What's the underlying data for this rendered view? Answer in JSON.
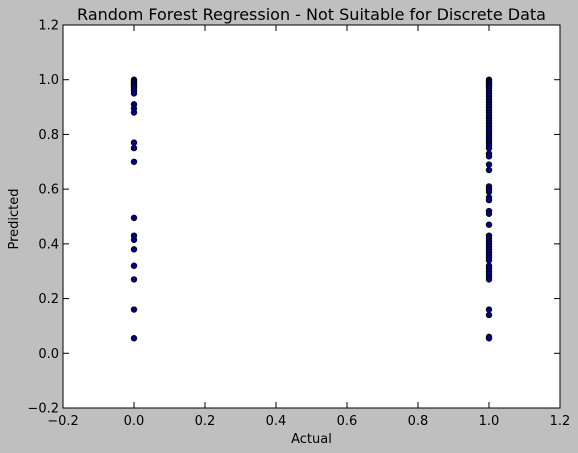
{
  "chart_data": {
    "type": "scatter",
    "title": "Random Forest Regression - Not Suitable for Discrete Data",
    "xlabel": "Actual",
    "ylabel": "Predicted",
    "xlim": [
      -0.2,
      1.2
    ],
    "ylim": [
      -0.2,
      1.2
    ],
    "xticks": [
      -0.2,
      0.0,
      0.2,
      0.4,
      0.6,
      0.8,
      1.0,
      1.2
    ],
    "yticks": [
      -0.2,
      0.0,
      0.2,
      0.4,
      0.6,
      0.8,
      1.0,
      1.2
    ],
    "xtick_labels": [
      "−0.2",
      "0.0",
      "0.2",
      "0.4",
      "0.6",
      "0.8",
      "1.0",
      "1.2"
    ],
    "ytick_labels": [
      "−0.2",
      "0.0",
      "0.2",
      "0.4",
      "0.6",
      "0.8",
      "1.0",
      "1.2"
    ],
    "grid": false,
    "marker_color": "#00008b",
    "marker_edge": "#000000",
    "series": [
      {
        "points": [
          {
            "x": 0,
            "y": 1.0
          },
          {
            "x": 0,
            "y": 0.995
          },
          {
            "x": 0,
            "y": 0.99
          },
          {
            "x": 0,
            "y": 0.985
          },
          {
            "x": 0,
            "y": 0.98
          },
          {
            "x": 0,
            "y": 0.975
          },
          {
            "x": 0,
            "y": 0.97
          },
          {
            "x": 0,
            "y": 0.96
          },
          {
            "x": 0,
            "y": 0.95
          },
          {
            "x": 0,
            "y": 0.91
          },
          {
            "x": 0,
            "y": 0.895
          },
          {
            "x": 0,
            "y": 0.88
          },
          {
            "x": 0,
            "y": 0.77
          },
          {
            "x": 0,
            "y": 0.75
          },
          {
            "x": 0,
            "y": 0.7
          },
          {
            "x": 0,
            "y": 0.495
          },
          {
            "x": 0,
            "y": 0.43
          },
          {
            "x": 0,
            "y": 0.415
          },
          {
            "x": 0,
            "y": 0.38
          },
          {
            "x": 0,
            "y": 0.32
          },
          {
            "x": 0,
            "y": 0.27
          },
          {
            "x": 0,
            "y": 0.16
          },
          {
            "x": 0,
            "y": 0.055
          },
          {
            "x": 1,
            "y": 1.0
          },
          {
            "x": 1,
            "y": 0.995
          },
          {
            "x": 1,
            "y": 0.99
          },
          {
            "x": 1,
            "y": 0.985
          },
          {
            "x": 1,
            "y": 0.98
          },
          {
            "x": 1,
            "y": 0.975
          },
          {
            "x": 1,
            "y": 0.97
          },
          {
            "x": 1,
            "y": 0.96
          },
          {
            "x": 1,
            "y": 0.95
          },
          {
            "x": 1,
            "y": 0.94
          },
          {
            "x": 1,
            "y": 0.93
          },
          {
            "x": 1,
            "y": 0.92
          },
          {
            "x": 1,
            "y": 0.91
          },
          {
            "x": 1,
            "y": 0.9
          },
          {
            "x": 1,
            "y": 0.89
          },
          {
            "x": 1,
            "y": 0.88
          },
          {
            "x": 1,
            "y": 0.87
          },
          {
            "x": 1,
            "y": 0.86
          },
          {
            "x": 1,
            "y": 0.85
          },
          {
            "x": 1,
            "y": 0.84
          },
          {
            "x": 1,
            "y": 0.83
          },
          {
            "x": 1,
            "y": 0.82
          },
          {
            "x": 1,
            "y": 0.81
          },
          {
            "x": 1,
            "y": 0.8
          },
          {
            "x": 1,
            "y": 0.79
          },
          {
            "x": 1,
            "y": 0.78
          },
          {
            "x": 1,
            "y": 0.77
          },
          {
            "x": 1,
            "y": 0.76
          },
          {
            "x": 1,
            "y": 0.75
          },
          {
            "x": 1,
            "y": 0.73
          },
          {
            "x": 1,
            "y": 0.72
          },
          {
            "x": 1,
            "y": 0.69
          },
          {
            "x": 1,
            "y": 0.67
          },
          {
            "x": 1,
            "y": 0.61
          },
          {
            "x": 1,
            "y": 0.6
          },
          {
            "x": 1,
            "y": 0.59
          },
          {
            "x": 1,
            "y": 0.57
          },
          {
            "x": 1,
            "y": 0.56
          },
          {
            "x": 1,
            "y": 0.52
          },
          {
            "x": 1,
            "y": 0.51
          },
          {
            "x": 1,
            "y": 0.47
          },
          {
            "x": 1,
            "y": 0.43
          },
          {
            "x": 1,
            "y": 0.42
          },
          {
            "x": 1,
            "y": 0.41
          },
          {
            "x": 1,
            "y": 0.4
          },
          {
            "x": 1,
            "y": 0.39
          },
          {
            "x": 1,
            "y": 0.38
          },
          {
            "x": 1,
            "y": 0.37
          },
          {
            "x": 1,
            "y": 0.36
          },
          {
            "x": 1,
            "y": 0.35
          },
          {
            "x": 1,
            "y": 0.34
          },
          {
            "x": 1,
            "y": 0.32
          },
          {
            "x": 1,
            "y": 0.31
          },
          {
            "x": 1,
            "y": 0.3
          },
          {
            "x": 1,
            "y": 0.29
          },
          {
            "x": 1,
            "y": 0.28
          },
          {
            "x": 1,
            "y": 0.27
          },
          {
            "x": 1,
            "y": 0.16
          },
          {
            "x": 1,
            "y": 0.14
          },
          {
            "x": 1,
            "y": 0.06
          },
          {
            "x": 1,
            "y": 0.055
          }
        ]
      }
    ]
  }
}
